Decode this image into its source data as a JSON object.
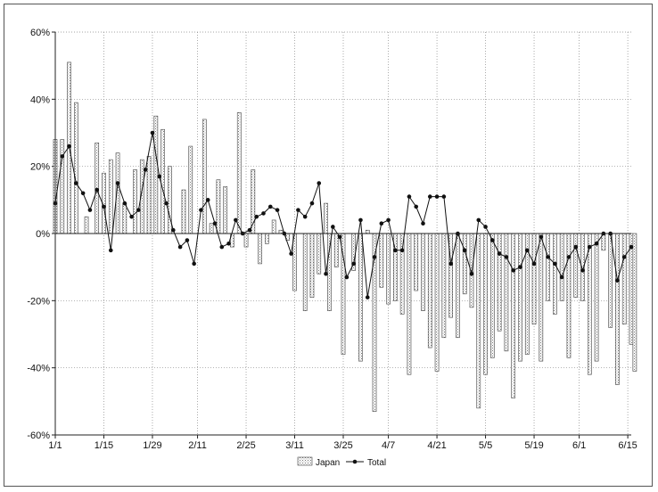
{
  "chart_data": {
    "type": "bar",
    "title": "",
    "xlabel": "",
    "ylabel": "",
    "ylim": [
      -60,
      60
    ],
    "yticks": [
      60,
      40,
      20,
      0,
      -20,
      -40,
      -60
    ],
    "ytick_labels": [
      "60%",
      "40%",
      "20%",
      "0%",
      "-20%",
      "-40%",
      "-60%"
    ],
    "x_range": [
      "2009-01-01",
      "2009-06-16"
    ],
    "xticks": [
      "2009-01-01",
      "2009-01-15",
      "2009-01-29",
      "2009-02-11",
      "2009-02-25",
      "2009-03-11",
      "2009-03-25",
      "2009-04-07",
      "2009-04-21",
      "2009-05-05",
      "2009-05-19",
      "2009-06-01",
      "2009-06-15"
    ],
    "xtick_labels": [
      "1/1",
      "1/15",
      "1/29",
      "2/11",
      "2/25",
      "3/11",
      "3/25",
      "4/7",
      "4/21",
      "5/5",
      "5/19",
      "6/1",
      "6/15"
    ],
    "grid": true,
    "legend_position": "bottom",
    "series": [
      {
        "name": "Japan",
        "kind": "bar",
        "points": [
          [
            "2009-01-01",
            28
          ],
          [
            "2009-01-03",
            28
          ],
          [
            "2009-01-05",
            51
          ],
          [
            "2009-01-07",
            39
          ],
          [
            "2009-01-10",
            5
          ],
          [
            "2009-01-13",
            27
          ],
          [
            "2009-01-15",
            18
          ],
          [
            "2009-01-17",
            22
          ],
          [
            "2009-01-19",
            24
          ],
          [
            "2009-01-21",
            9
          ],
          [
            "2009-01-24",
            19
          ],
          [
            "2009-01-26",
            22
          ],
          [
            "2009-01-28",
            23
          ],
          [
            "2009-01-30",
            35
          ],
          [
            "2009-02-01",
            31
          ],
          [
            "2009-02-03",
            20
          ],
          [
            "2009-02-07",
            13
          ],
          [
            "2009-02-09",
            26
          ],
          [
            "2009-02-13",
            34
          ],
          [
            "2009-02-15",
            3
          ],
          [
            "2009-02-17",
            16
          ],
          [
            "2009-02-19",
            14
          ],
          [
            "2009-02-21",
            -4
          ],
          [
            "2009-02-23",
            36
          ],
          [
            "2009-02-25",
            -4
          ],
          [
            "2009-02-27",
            19
          ],
          [
            "2009-03-01",
            -9
          ],
          [
            "2009-03-03",
            -3
          ],
          [
            "2009-03-05",
            4
          ],
          [
            "2009-03-07",
            1
          ],
          [
            "2009-03-09",
            -2
          ],
          [
            "2009-03-11",
            -17
          ],
          [
            "2009-03-14",
            -23
          ],
          [
            "2009-03-16",
            -19
          ],
          [
            "2009-03-18",
            -12
          ],
          [
            "2009-03-20",
            9
          ],
          [
            "2009-03-21",
            -23
          ],
          [
            "2009-03-23",
            -10
          ],
          [
            "2009-03-25",
            -36
          ],
          [
            "2009-03-28",
            -11
          ],
          [
            "2009-03-30",
            -38
          ],
          [
            "2009-04-01",
            1
          ],
          [
            "2009-04-03",
            -53
          ],
          [
            "2009-04-05",
            -16
          ],
          [
            "2009-04-07",
            -21
          ],
          [
            "2009-04-09",
            -20
          ],
          [
            "2009-04-11",
            -24
          ],
          [
            "2009-04-13",
            -42
          ],
          [
            "2009-04-15",
            -17
          ],
          [
            "2009-04-17",
            -23
          ],
          [
            "2009-04-19",
            -34
          ],
          [
            "2009-04-21",
            -41
          ],
          [
            "2009-04-23",
            -31
          ],
          [
            "2009-04-25",
            -25
          ],
          [
            "2009-04-27",
            -31
          ],
          [
            "2009-04-29",
            -18
          ],
          [
            "2009-05-01",
            -22
          ],
          [
            "2009-05-03",
            -52
          ],
          [
            "2009-05-05",
            -42
          ],
          [
            "2009-05-07",
            -37
          ],
          [
            "2009-05-09",
            -29
          ],
          [
            "2009-05-11",
            -35
          ],
          [
            "2009-05-13",
            -49
          ],
          [
            "2009-05-15",
            -38
          ],
          [
            "2009-05-17",
            -36
          ],
          [
            "2009-05-19",
            -27
          ],
          [
            "2009-05-21",
            -38
          ],
          [
            "2009-05-23",
            -20
          ],
          [
            "2009-05-25",
            -24
          ],
          [
            "2009-05-27",
            -20
          ],
          [
            "2009-05-29",
            -37
          ],
          [
            "2009-05-31",
            -19
          ],
          [
            "2009-06-02",
            -20
          ],
          [
            "2009-06-04",
            -42
          ],
          [
            "2009-06-06",
            -38
          ],
          [
            "2009-06-08",
            -5
          ],
          [
            "2009-06-10",
            -28
          ],
          [
            "2009-06-12",
            -45
          ],
          [
            "2009-06-14",
            -27
          ],
          [
            "2009-06-16",
            -33
          ],
          [
            "2009-06-17",
            -41
          ]
        ]
      },
      {
        "name": "Total",
        "kind": "line",
        "points": [
          [
            "2009-01-01",
            9
          ],
          [
            "2009-01-03",
            23
          ],
          [
            "2009-01-05",
            26
          ],
          [
            "2009-01-07",
            15
          ],
          [
            "2009-01-09",
            12
          ],
          [
            "2009-01-11",
            7
          ],
          [
            "2009-01-13",
            13
          ],
          [
            "2009-01-15",
            8
          ],
          [
            "2009-01-17",
            -5
          ],
          [
            "2009-01-19",
            15
          ],
          [
            "2009-01-21",
            9
          ],
          [
            "2009-01-23",
            5
          ],
          [
            "2009-01-25",
            7
          ],
          [
            "2009-01-27",
            19
          ],
          [
            "2009-01-29",
            30
          ],
          [
            "2009-01-31",
            17
          ],
          [
            "2009-02-02",
            9
          ],
          [
            "2009-02-04",
            1
          ],
          [
            "2009-02-06",
            -4
          ],
          [
            "2009-02-08",
            -2
          ],
          [
            "2009-02-10",
            -9
          ],
          [
            "2009-02-12",
            7
          ],
          [
            "2009-02-14",
            10
          ],
          [
            "2009-02-16",
            3
          ],
          [
            "2009-02-18",
            -4
          ],
          [
            "2009-02-20",
            -3
          ],
          [
            "2009-02-22",
            4
          ],
          [
            "2009-02-24",
            0
          ],
          [
            "2009-02-26",
            1
          ],
          [
            "2009-02-28",
            5
          ],
          [
            "2009-03-02",
            6
          ],
          [
            "2009-03-04",
            8
          ],
          [
            "2009-03-06",
            7
          ],
          [
            "2009-03-08",
            0
          ],
          [
            "2009-03-10",
            -6
          ],
          [
            "2009-03-12",
            7
          ],
          [
            "2009-03-14",
            5
          ],
          [
            "2009-03-16",
            9
          ],
          [
            "2009-03-18",
            15
          ],
          [
            "2009-03-20",
            -12
          ],
          [
            "2009-03-22",
            2
          ],
          [
            "2009-03-24",
            -1
          ],
          [
            "2009-03-26",
            -13
          ],
          [
            "2009-03-28",
            -9
          ],
          [
            "2009-03-30",
            4
          ],
          [
            "2009-04-01",
            -19
          ],
          [
            "2009-04-03",
            -7
          ],
          [
            "2009-04-05",
            3
          ],
          [
            "2009-04-07",
            4
          ],
          [
            "2009-04-09",
            -5
          ],
          [
            "2009-04-11",
            -5
          ],
          [
            "2009-04-13",
            11
          ],
          [
            "2009-04-15",
            8
          ],
          [
            "2009-04-17",
            3
          ],
          [
            "2009-04-19",
            11
          ],
          [
            "2009-04-21",
            11
          ],
          [
            "2009-04-23",
            11
          ],
          [
            "2009-04-25",
            -9
          ],
          [
            "2009-04-27",
            0
          ],
          [
            "2009-04-29",
            -5
          ],
          [
            "2009-05-01",
            -12
          ],
          [
            "2009-05-03",
            4
          ],
          [
            "2009-05-05",
            2
          ],
          [
            "2009-05-07",
            -2
          ],
          [
            "2009-05-09",
            -6
          ],
          [
            "2009-05-11",
            -7
          ],
          [
            "2009-05-13",
            -11
          ],
          [
            "2009-05-15",
            -10
          ],
          [
            "2009-05-17",
            -5
          ],
          [
            "2009-05-19",
            -9
          ],
          [
            "2009-05-21",
            -1
          ],
          [
            "2009-05-23",
            -7
          ],
          [
            "2009-05-25",
            -9
          ],
          [
            "2009-05-27",
            -13
          ],
          [
            "2009-05-29",
            -7
          ],
          [
            "2009-05-31",
            -4
          ],
          [
            "2009-06-02",
            -11
          ],
          [
            "2009-06-04",
            -4
          ],
          [
            "2009-06-06",
            -3
          ],
          [
            "2009-06-08",
            0
          ],
          [
            "2009-06-10",
            0
          ],
          [
            "2009-06-12",
            -14
          ],
          [
            "2009-06-14",
            -7
          ],
          [
            "2009-06-16",
            -4
          ]
        ]
      }
    ]
  }
}
